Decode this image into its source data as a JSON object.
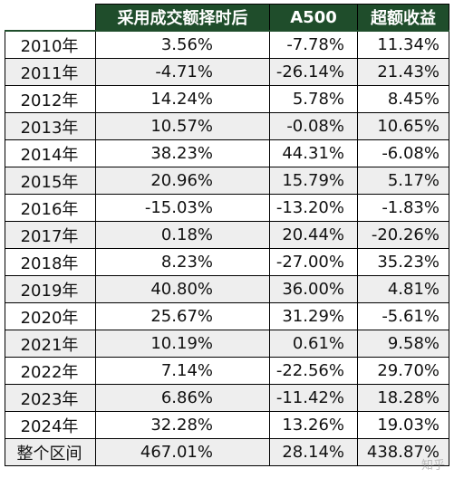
{
  "table": {
    "headers": [
      "",
      "采用成交额择时后",
      "A500",
      "超额收益"
    ],
    "rows": [
      {
        "label": "2010年",
        "strategy": "3.56%",
        "a500": "-7.78%",
        "excess": "11.34%"
      },
      {
        "label": "2011年",
        "strategy": "-4.71%",
        "a500": "-26.14%",
        "excess": "21.43%"
      },
      {
        "label": "2012年",
        "strategy": "14.24%",
        "a500": "5.78%",
        "excess": "8.45%"
      },
      {
        "label": "2013年",
        "strategy": "10.57%",
        "a500": "-0.08%",
        "excess": "10.65%"
      },
      {
        "label": "2014年",
        "strategy": "38.23%",
        "a500": "44.31%",
        "excess": "-6.08%"
      },
      {
        "label": "2015年",
        "strategy": "20.96%",
        "a500": "15.79%",
        "excess": "5.17%"
      },
      {
        "label": "2016年",
        "strategy": "-15.03%",
        "a500": "-13.20%",
        "excess": "-1.83%"
      },
      {
        "label": "2017年",
        "strategy": "0.18%",
        "a500": "20.44%",
        "excess": "-20.26%"
      },
      {
        "label": "2018年",
        "strategy": "8.23%",
        "a500": "-27.00%",
        "excess": "35.23%"
      },
      {
        "label": "2019年",
        "strategy": "40.80%",
        "a500": "36.00%",
        "excess": "4.81%"
      },
      {
        "label": "2020年",
        "strategy": "25.67%",
        "a500": "31.29%",
        "excess": "-5.61%"
      },
      {
        "label": "2021年",
        "strategy": "10.19%",
        "a500": "0.61%",
        "excess": "9.58%"
      },
      {
        "label": "2022年",
        "strategy": "7.14%",
        "a500": "-22.56%",
        "excess": "29.70%"
      },
      {
        "label": "2023年",
        "strategy": "6.86%",
        "a500": "-11.42%",
        "excess": "18.28%"
      },
      {
        "label": "2024年",
        "strategy": "32.28%",
        "a500": "13.26%",
        "excess": "19.03%"
      },
      {
        "label": "整个区间",
        "strategy": "467.01%",
        "a500": "28.14%",
        "excess": "438.87%"
      }
    ]
  },
  "colors": {
    "header_bg": "#1f4d2b",
    "header_text": "#ffffff",
    "stripe_bg": "#eeeeee"
  }
}
